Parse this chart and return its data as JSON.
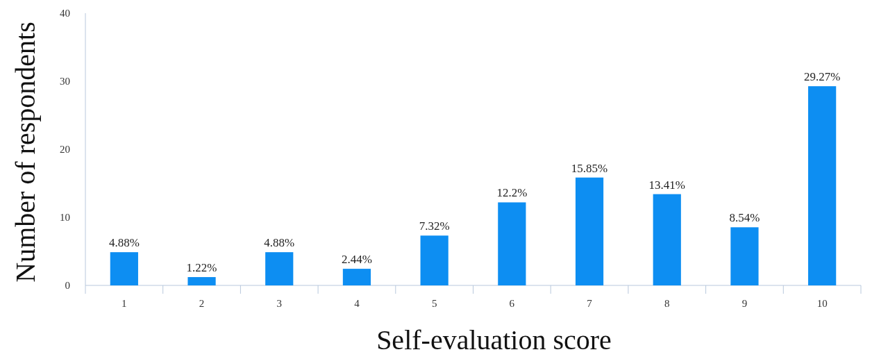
{
  "chart_data": {
    "type": "bar",
    "xlabel": "Self-evaluation score",
    "ylabel": "Number of respondents",
    "categories": [
      "1",
      "2",
      "3",
      "4",
      "5",
      "6",
      "7",
      "8",
      "9",
      "10"
    ],
    "values": [
      4.88,
      1.22,
      4.88,
      2.44,
      7.32,
      12.2,
      15.85,
      13.41,
      8.54,
      29.27
    ],
    "value_labels": [
      "4.88%",
      "1.22%",
      "4.88%",
      "2.44%",
      "7.32%",
      "12.2%",
      "15.85%",
      "13.41%",
      "8.54%",
      "29.27%"
    ],
    "color": "#0d8ef2",
    "ylim": [
      0,
      40
    ],
    "yticks": [
      0,
      10,
      20,
      30,
      40
    ],
    "grid": false
  }
}
